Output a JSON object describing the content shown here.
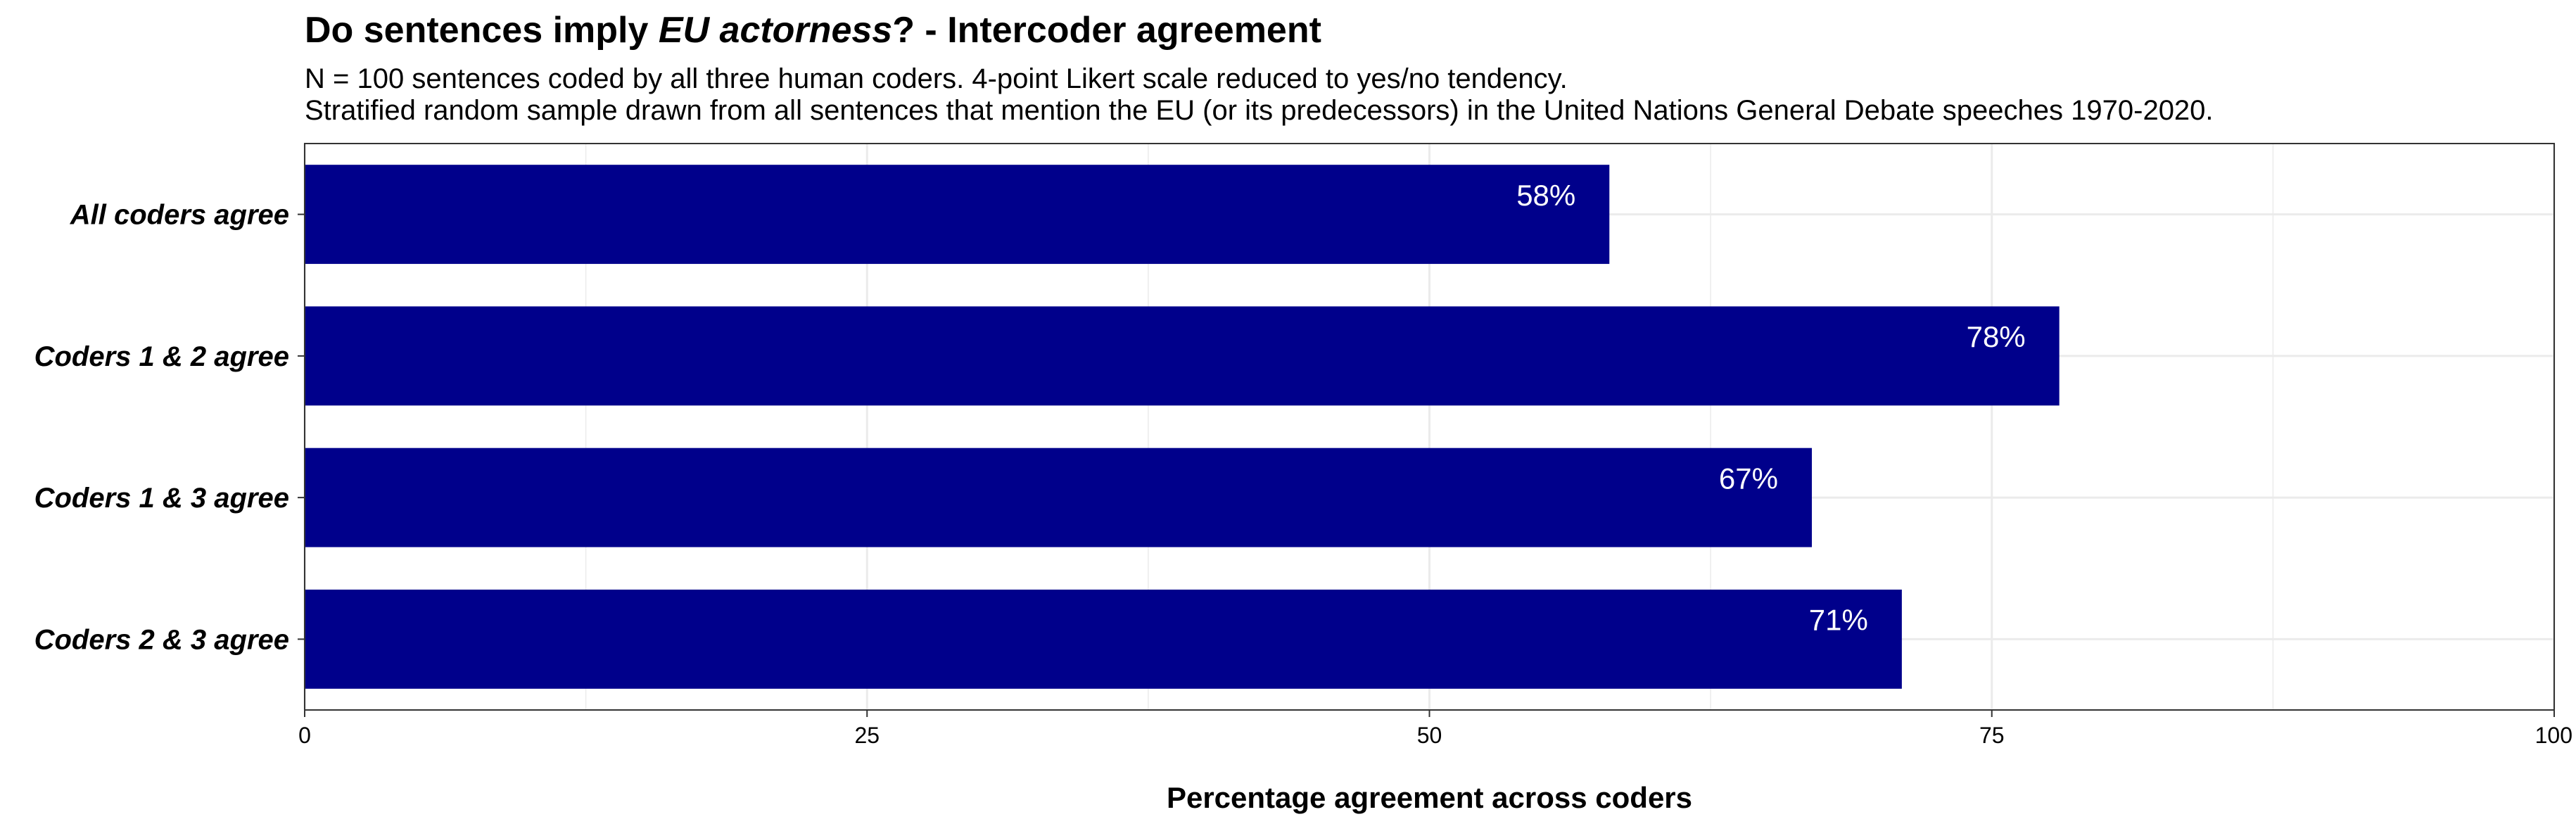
{
  "chart_data": {
    "type": "bar",
    "orientation": "horizontal",
    "title_parts": [
      {
        "text": "Do sentences imply ",
        "italic": false
      },
      {
        "text": "EU actorness",
        "italic": true
      },
      {
        "text": "? - Intercoder agreement",
        "italic": false
      }
    ],
    "subtitle_lines": [
      "N = 100 sentences coded by all three human coders. 4-point Likert scale reduced to yes/no tendency.",
      "Stratified random sample drawn from all sentences that mention the EU (or its predecessors) in the United Nations General Debate speeches 1970-2020."
    ],
    "categories": [
      "All coders agree",
      "Coders 1 & 2 agree",
      "Coders 1 & 3 agree",
      "Coders 2 & 3 agree"
    ],
    "values": [
      58,
      78,
      67,
      71
    ],
    "data_labels": [
      "58%",
      "78%",
      "67%",
      "71%"
    ],
    "xlabel": "Percentage agreement across coders",
    "ylabel": "",
    "xlim": [
      0,
      100
    ],
    "xticks": [
      0,
      25,
      50,
      75,
      100
    ],
    "xtick_labels": [
      "0",
      "25",
      "50",
      "75",
      "100"
    ],
    "minor_gridlines_x": [
      12.5,
      37.5,
      62.5,
      87.5
    ],
    "grid": true,
    "bar_color": "#00008B",
    "grid_color": "#EBEBEB",
    "label_color": "#FFFFFF"
  }
}
